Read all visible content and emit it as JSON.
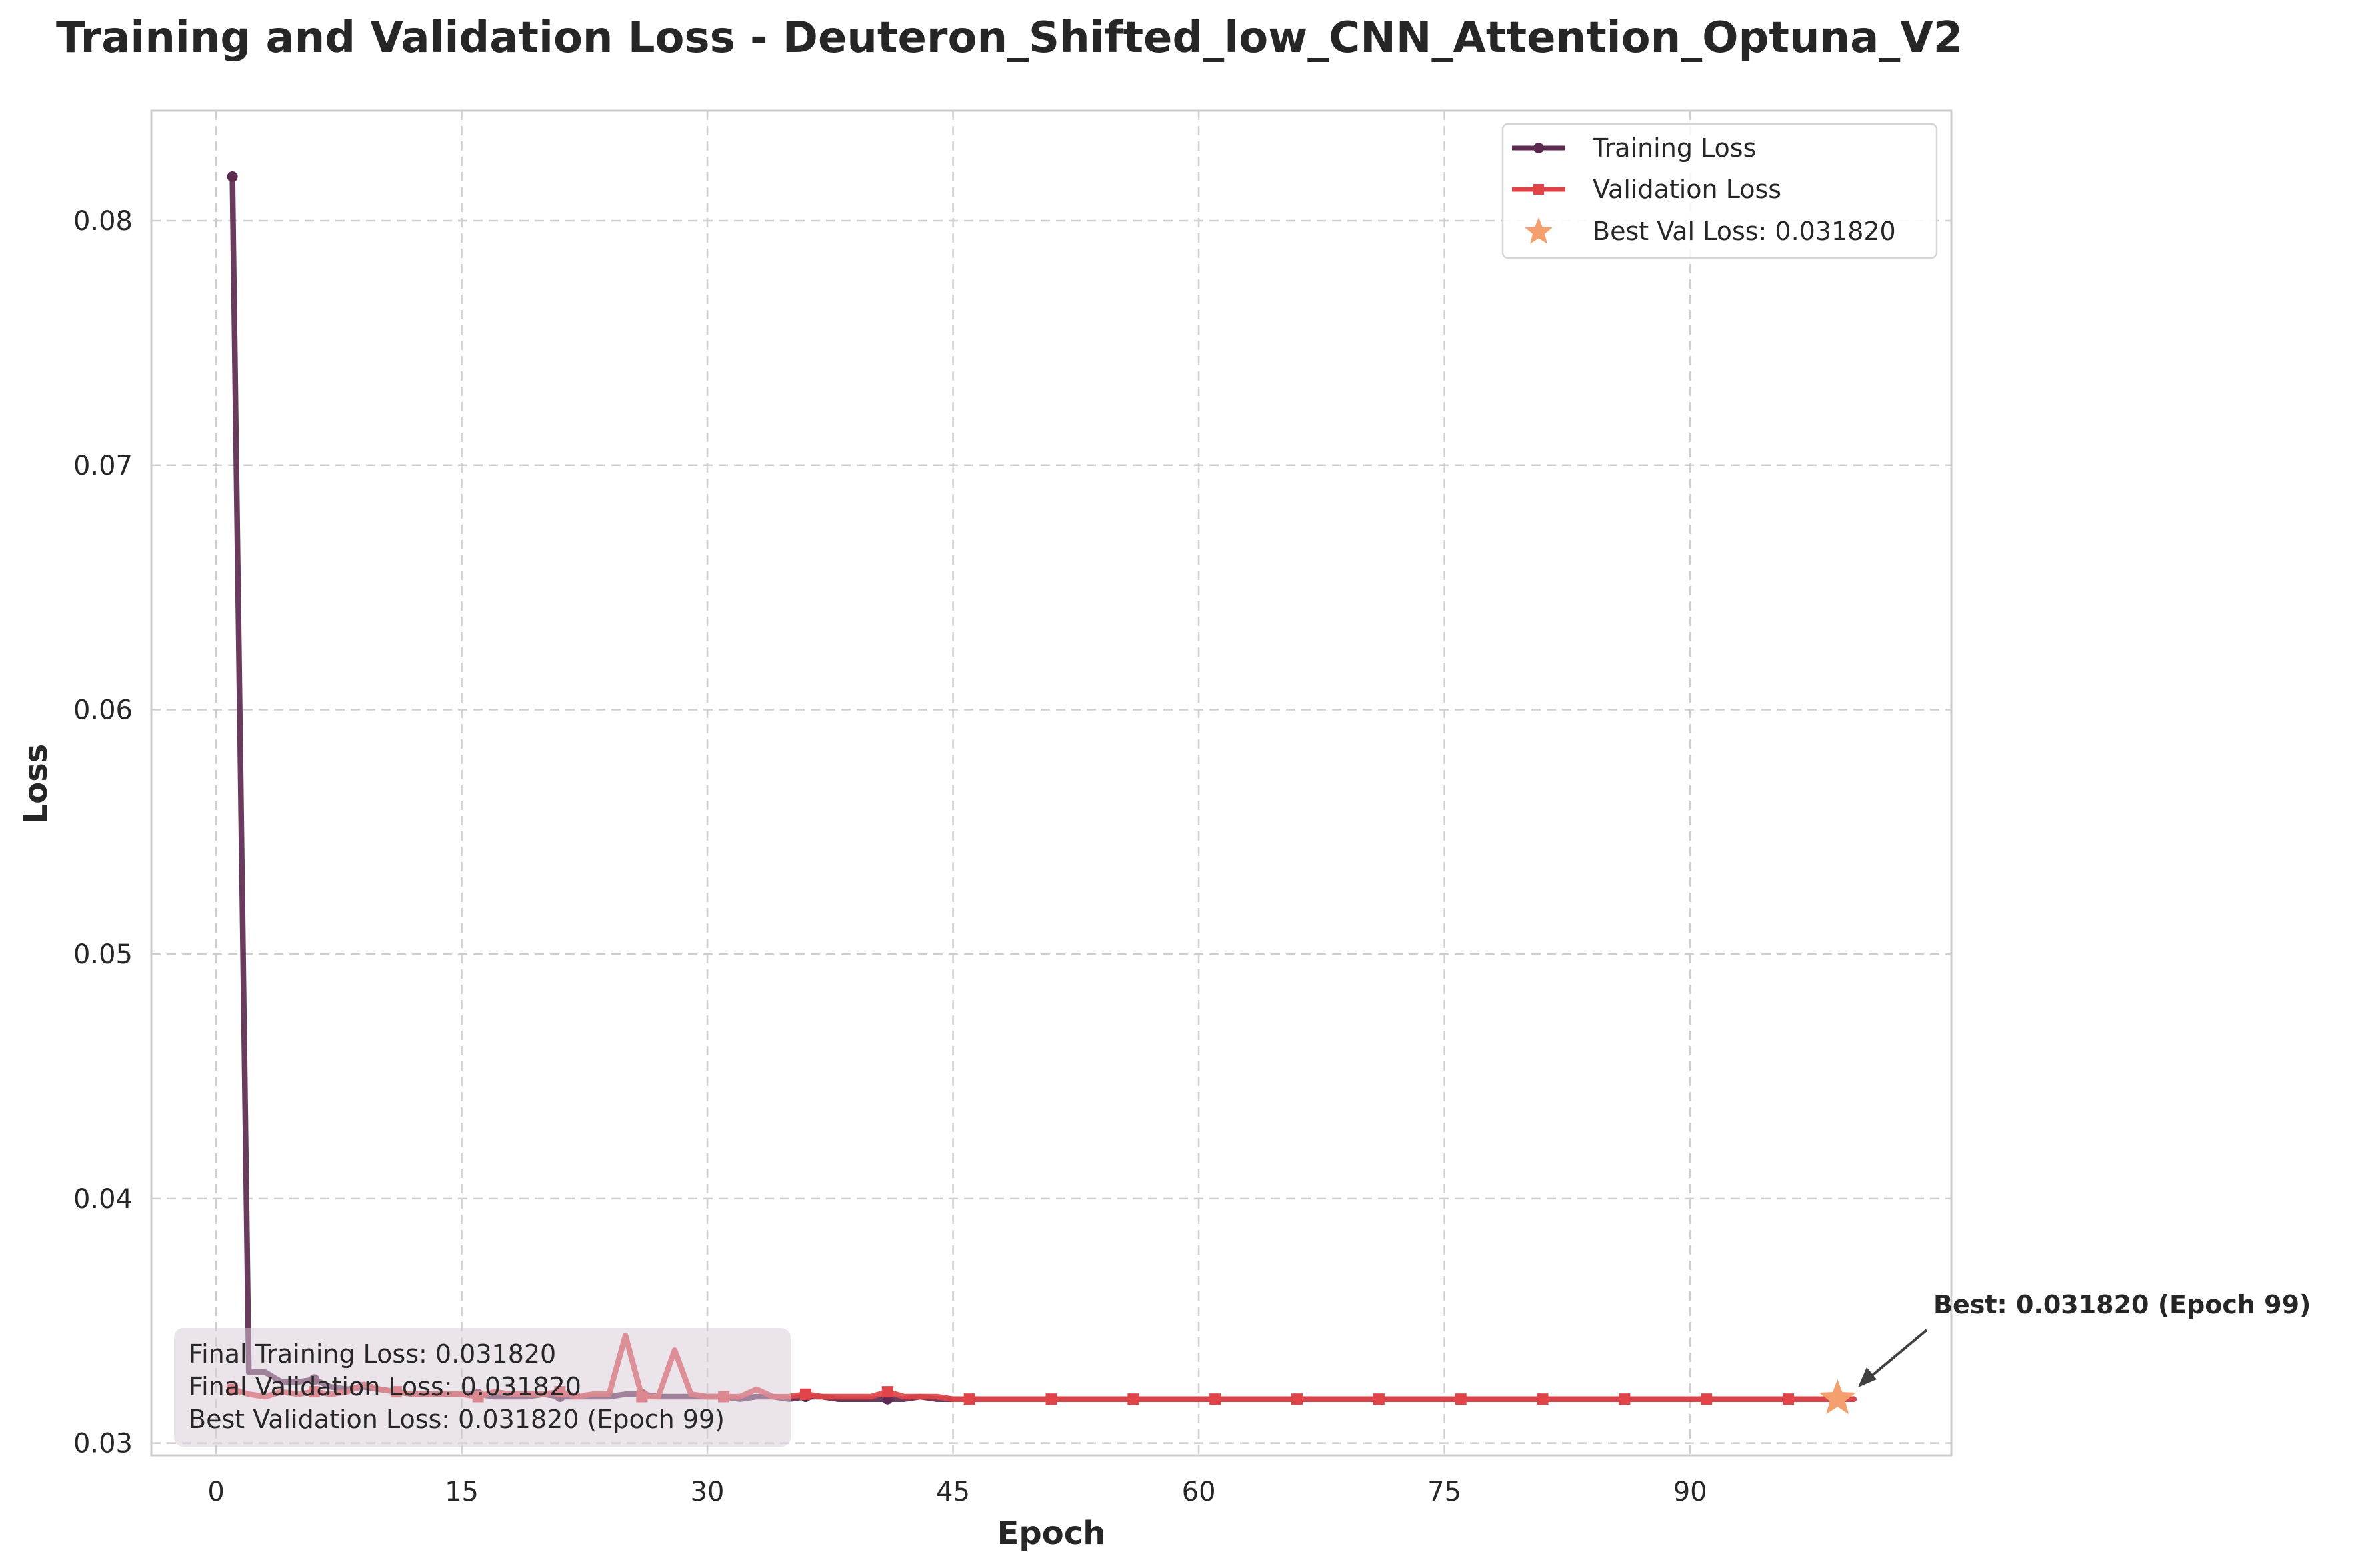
{
  "chart_data": {
    "type": "line",
    "title": "Training and Validation Loss - Deuteron_Shifted_low_CNN_Attention_Optuna_V2",
    "xlabel": "Epoch",
    "ylabel": "Loss",
    "xlim": [
      -3.95,
      105.95
    ],
    "ylim": [
      0.0295,
      0.0845
    ],
    "xticks": [
      0,
      15,
      30,
      45,
      60,
      75,
      90
    ],
    "yticks": [
      0.03,
      0.04,
      0.05,
      0.06,
      0.07,
      0.08
    ],
    "ytick_labels": [
      "0.03",
      "0.04",
      "0.05",
      "0.06",
      "0.07",
      "0.08"
    ],
    "grid": true,
    "legend_position": "top-right",
    "colors": {
      "training": "#5c2a4e",
      "validation": "#e04448",
      "best": "#f4a06e"
    },
    "series": [
      {
        "name": "Training Loss",
        "marker": "circle",
        "x": [
          1,
          2,
          3,
          4,
          5,
          6,
          7,
          8,
          9,
          10,
          11,
          12,
          13,
          14,
          15,
          16,
          17,
          18,
          19,
          20,
          21,
          22,
          23,
          24,
          25,
          26,
          27,
          28,
          29,
          30,
          31,
          32,
          33,
          34,
          35,
          36,
          37,
          38,
          39,
          40,
          41,
          42,
          43,
          44,
          45,
          46,
          47,
          48,
          49,
          50,
          51,
          52,
          53,
          54,
          55,
          56,
          57,
          58,
          59,
          60,
          61,
          62,
          63,
          64,
          65,
          66,
          67,
          68,
          69,
          70,
          71,
          72,
          73,
          74,
          75,
          76,
          77,
          78,
          79,
          80,
          81,
          82,
          83,
          84,
          85,
          86,
          87,
          88,
          89,
          90,
          91,
          92,
          93,
          94,
          95,
          96,
          97,
          98,
          99,
          100
        ],
        "y": [
          0.0818,
          0.0329,
          0.0329,
          0.0325,
          0.0325,
          0.0326,
          0.0323,
          0.0322,
          0.0323,
          0.0322,
          0.0321,
          0.032,
          0.032,
          0.032,
          0.032,
          0.032,
          0.0319,
          0.0319,
          0.0319,
          0.032,
          0.0319,
          0.0319,
          0.0319,
          0.0319,
          0.032,
          0.032,
          0.0319,
          0.0319,
          0.0319,
          0.0319,
          0.0319,
          0.0318,
          0.0319,
          0.0319,
          0.0318,
          0.0319,
          0.0319,
          0.0318,
          0.0318,
          0.0318,
          0.0318,
          0.0318,
          0.0319,
          0.0318,
          0.0318,
          0.0318,
          0.0318,
          0.0318,
          0.0318,
          0.0318,
          0.0318,
          0.0318,
          0.0318,
          0.0318,
          0.0318,
          0.0318,
          0.0318,
          0.0318,
          0.0318,
          0.0318,
          0.0318,
          0.0318,
          0.0318,
          0.0318,
          0.0318,
          0.0318,
          0.0318,
          0.0318,
          0.0318,
          0.0318,
          0.0318,
          0.0318,
          0.0318,
          0.0318,
          0.0318,
          0.0318,
          0.0318,
          0.0318,
          0.0318,
          0.0318,
          0.0318,
          0.0318,
          0.0318,
          0.0318,
          0.0318,
          0.0318,
          0.0318,
          0.0318,
          0.0318,
          0.0318,
          0.0318,
          0.0318,
          0.0318,
          0.0318,
          0.0318,
          0.0318,
          0.0318,
          0.0318,
          0.0318,
          0.0318
        ]
      },
      {
        "name": "Validation Loss",
        "marker": "square",
        "x": [
          1,
          2,
          3,
          4,
          5,
          6,
          7,
          8,
          9,
          10,
          11,
          12,
          13,
          14,
          15,
          16,
          17,
          18,
          19,
          20,
          21,
          22,
          23,
          24,
          25,
          26,
          27,
          28,
          29,
          30,
          31,
          32,
          33,
          34,
          35,
          36,
          37,
          38,
          39,
          40,
          41,
          42,
          43,
          44,
          45,
          46,
          47,
          48,
          49,
          50,
          51,
          52,
          53,
          54,
          55,
          56,
          57,
          58,
          59,
          60,
          61,
          62,
          63,
          64,
          65,
          66,
          67,
          68,
          69,
          70,
          71,
          72,
          73,
          74,
          75,
          76,
          77,
          78,
          79,
          80,
          81,
          82,
          83,
          84,
          85,
          86,
          87,
          88,
          89,
          90,
          91,
          92,
          93,
          94,
          95,
          96,
          97,
          98,
          99,
          100
        ],
        "y": [
          0.0322,
          0.032,
          0.0319,
          0.0321,
          0.032,
          0.0321,
          0.032,
          0.0321,
          0.0324,
          0.0322,
          0.0321,
          0.032,
          0.032,
          0.032,
          0.032,
          0.0319,
          0.0321,
          0.032,
          0.032,
          0.032,
          0.0321,
          0.0319,
          0.032,
          0.032,
          0.0344,
          0.0319,
          0.0319,
          0.0338,
          0.032,
          0.0319,
          0.0319,
          0.0319,
          0.0322,
          0.0319,
          0.0319,
          0.032,
          0.0319,
          0.0319,
          0.0319,
          0.0319,
          0.0321,
          0.0319,
          0.0319,
          0.0319,
          0.0318,
          0.0318,
          0.0318,
          0.0318,
          0.0318,
          0.0318,
          0.0318,
          0.0318,
          0.0318,
          0.0318,
          0.0318,
          0.0318,
          0.0318,
          0.0318,
          0.0318,
          0.0318,
          0.0318,
          0.0318,
          0.0318,
          0.0318,
          0.0318,
          0.0318,
          0.0318,
          0.0318,
          0.0318,
          0.0318,
          0.0318,
          0.0318,
          0.0318,
          0.0318,
          0.0318,
          0.0318,
          0.0318,
          0.0318,
          0.0318,
          0.0318,
          0.0318,
          0.0318,
          0.0318,
          0.0318,
          0.0318,
          0.0318,
          0.0318,
          0.0318,
          0.0318,
          0.0318,
          0.0318,
          0.0318,
          0.0318,
          0.0318,
          0.0318,
          0.0318,
          0.0318,
          0.0318,
          0.0318,
          0.0318
        ]
      }
    ],
    "best_point": {
      "label": "Best Val Loss: 0.031820",
      "epoch": 99,
      "loss": 0.03182
    },
    "annotation": "Best: 0.031820 (Epoch 99)",
    "stats_box": [
      "Final Training Loss: 0.031820",
      "Final Validation Loss: 0.031820",
      "Best Validation Loss: 0.031820 (Epoch 99)"
    ]
  }
}
